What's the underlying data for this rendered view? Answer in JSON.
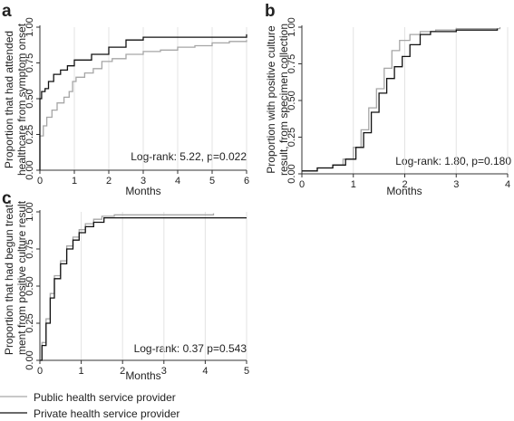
{
  "chart_data": [
    {
      "type": "line",
      "subtype": "step",
      "panel": "a",
      "ylabel": [
        "Proportion that had attended",
        "healthcare from symptom onset"
      ],
      "xlabel": "Months",
      "xlim": [
        0,
        6
      ],
      "ylim": [
        0,
        1
      ],
      "xticks": [
        0,
        1,
        2,
        3,
        4,
        5,
        6
      ],
      "yticks": [
        0,
        0.25,
        0.5,
        0.75,
        1
      ],
      "ytick_labels": [
        "0.00",
        "0.25",
        "0.50",
        "0.75",
        "1.00"
      ],
      "grid": "vertical",
      "annotation": "Log-rank: 5.22, p=0.022",
      "series": [
        {
          "name": "Public health service provider",
          "color": "#a6a6a6",
          "x": [
            0,
            0,
            0.1,
            0.2,
            0.35,
            0.5,
            0.7,
            0.85,
            0.95,
            1.05,
            1.3,
            1.55,
            1.8,
            2.1,
            2.5,
            3.0,
            3.5,
            4.0,
            4.5,
            5.0,
            5.5,
            6.0
          ],
          "y": [
            0,
            0.24,
            0.31,
            0.37,
            0.42,
            0.47,
            0.51,
            0.55,
            0.62,
            0.65,
            0.68,
            0.71,
            0.76,
            0.78,
            0.81,
            0.83,
            0.84,
            0.86,
            0.87,
            0.89,
            0.9,
            0.91
          ]
        },
        {
          "name": "Private health service provider",
          "color": "#111111",
          "x": [
            0,
            0,
            0.05,
            0.15,
            0.25,
            0.4,
            0.6,
            0.8,
            1.0,
            1.5,
            2.0,
            2.5,
            3.0,
            6.0
          ],
          "y": [
            0,
            0.5,
            0.55,
            0.57,
            0.62,
            0.67,
            0.7,
            0.73,
            0.77,
            0.81,
            0.86,
            0.91,
            0.93,
            0.95
          ]
        }
      ]
    },
    {
      "type": "line",
      "subtype": "step",
      "panel": "b",
      "ylabel": [
        "Proportion with positive culture",
        "result, from specimen collection"
      ],
      "xlabel": "Months",
      "xlim": [
        0,
        4
      ],
      "ylim": [
        0,
        1
      ],
      "xticks": [
        0,
        1,
        2,
        3,
        4
      ],
      "yticks": [
        0,
        0.25,
        0.5,
        0.75,
        1
      ],
      "ytick_labels": [
        "0.00",
        "0.25",
        "0.50",
        "0.75",
        "1.00"
      ],
      "grid": "vertical",
      "annotation": "Log-rank: 1.80, p=0.180",
      "series": [
        {
          "name": "Public health service provider",
          "color": "#a6a6a6",
          "x": [
            0,
            0.3,
            0.6,
            0.8,
            1.0,
            1.15,
            1.3,
            1.45,
            1.6,
            1.75,
            1.9,
            2.1,
            2.3,
            2.6,
            3.0,
            3.85
          ],
          "y": [
            0.02,
            0.04,
            0.06,
            0.1,
            0.18,
            0.3,
            0.45,
            0.58,
            0.72,
            0.84,
            0.91,
            0.95,
            0.97,
            0.98,
            0.99,
            1.0
          ]
        },
        {
          "name": "Private health service provider",
          "color": "#111111",
          "x": [
            0,
            0.3,
            0.6,
            0.85,
            1.05,
            1.2,
            1.35,
            1.5,
            1.65,
            1.8,
            1.95,
            2.1,
            2.3,
            2.5,
            3.0,
            3.8
          ],
          "y": [
            0.02,
            0.04,
            0.06,
            0.1,
            0.18,
            0.28,
            0.42,
            0.55,
            0.65,
            0.73,
            0.8,
            0.88,
            0.95,
            0.97,
            0.98,
            0.99
          ]
        }
      ]
    },
    {
      "type": "line",
      "subtype": "step",
      "panel": "c",
      "ylabel": [
        "Proportion that had begun treat-",
        "ment from positive culture result"
      ],
      "xlabel": "Months",
      "xlim": [
        0,
        5
      ],
      "ylim": [
        0,
        1
      ],
      "xticks": [
        0,
        1,
        2,
        3,
        4,
        5
      ],
      "yticks": [
        0,
        0.25,
        0.5,
        0.75,
        1
      ],
      "ytick_labels": [
        "0.00",
        "0.25",
        "0.50",
        "0.75",
        "1.00"
      ],
      "grid": "vertical",
      "annotation": "Log-rank: 0.37 p=0.543",
      "series": [
        {
          "name": "Public health service provider",
          "color": "#a6a6a6",
          "x": [
            0,
            0.05,
            0.15,
            0.25,
            0.35,
            0.5,
            0.65,
            0.8,
            0.95,
            1.1,
            1.3,
            1.5,
            1.8,
            4.2
          ],
          "y": [
            0,
            0.12,
            0.28,
            0.45,
            0.57,
            0.67,
            0.77,
            0.83,
            0.88,
            0.92,
            0.95,
            0.97,
            0.98,
            0.99
          ]
        },
        {
          "name": "Private health service provider",
          "color": "#111111",
          "x": [
            0,
            0.05,
            0.15,
            0.25,
            0.35,
            0.5,
            0.65,
            0.8,
            0.95,
            1.1,
            1.3,
            1.55,
            5.0
          ],
          "y": [
            0,
            0.1,
            0.25,
            0.42,
            0.55,
            0.65,
            0.75,
            0.81,
            0.86,
            0.9,
            0.93,
            0.96,
            0.96
          ]
        }
      ]
    }
  ],
  "legend": {
    "placement": "bottom-left",
    "items": [
      {
        "label": "Public health service provider",
        "color": "#a6a6a6"
      },
      {
        "label": "Private health service provider",
        "color": "#111111"
      }
    ]
  }
}
